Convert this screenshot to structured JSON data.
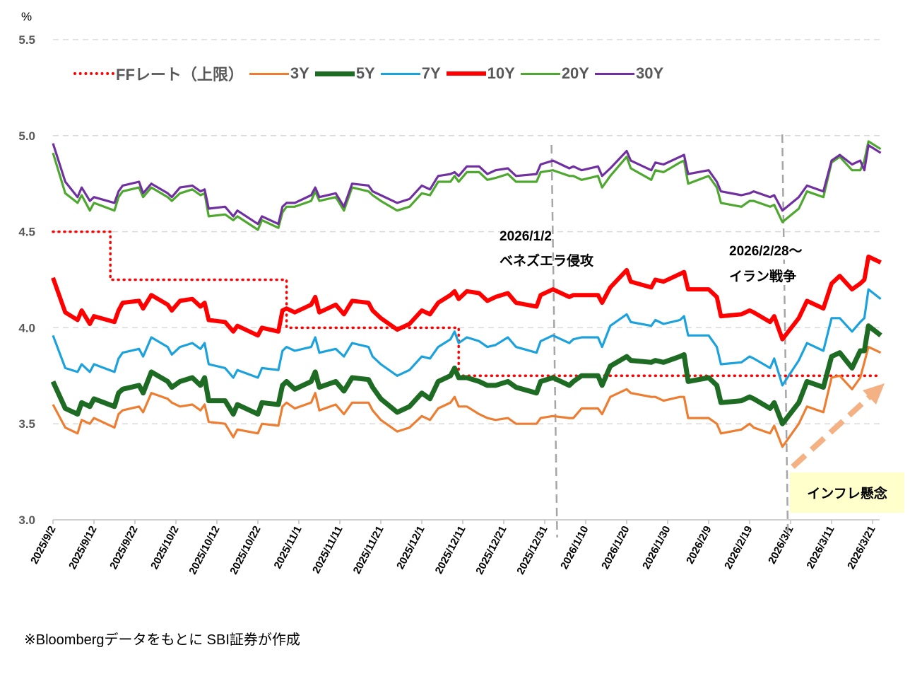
{
  "chart_data": {
    "type": "line",
    "ylabel": "%",
    "ylim": [
      3.0,
      5.5
    ],
    "yticks": [
      "5.5",
      "5.0",
      "4.5",
      "4.0",
      "3.5",
      "3.0"
    ],
    "ytick_values": [
      5.5,
      5.0,
      4.5,
      4.0,
      3.5,
      3.0
    ],
    "grid": true,
    "legend_position": "top",
    "xticks": [
      "2025/9/2",
      "2025/9/12",
      "2025/9/22",
      "2025/10/2",
      "2025/10/12",
      "2025/10/22",
      "2025/11/1",
      "2025/11/11",
      "2025/11/21",
      "2025/12/1",
      "2025/12/11",
      "2025/12/21",
      "2025/12/31",
      "2026/1/10",
      "2026/1/20",
      "2026/1/30",
      "2026/2/9",
      "2026/2/19",
      "2026/3/1",
      "2026/3/11",
      "2026/3/21"
    ],
    "x": [
      "2025-09-02",
      "2025-09-05",
      "2025-09-08",
      "2025-09-09",
      "2025-09-11",
      "2025-09-12",
      "2025-09-17",
      "2025-09-18",
      "2025-09-19",
      "2025-09-23",
      "2025-09-24",
      "2025-09-26",
      "2025-09-30",
      "2025-10-01",
      "2025-10-03",
      "2025-10-06",
      "2025-10-08",
      "2025-10-09",
      "2025-10-10",
      "2025-10-14",
      "2025-10-16",
      "2025-10-17",
      "2025-10-22",
      "2025-10-23",
      "2025-10-27",
      "2025-10-28",
      "2025-10-29",
      "2025-10-31",
      "2025-11-04",
      "2025-11-05",
      "2025-11-06",
      "2025-11-10",
      "2025-11-12",
      "2025-11-14",
      "2025-11-18",
      "2025-11-19",
      "2025-11-21",
      "2025-11-25",
      "2025-11-28",
      "2025-12-01",
      "2025-12-03",
      "2025-12-05",
      "2025-12-08",
      "2025-12-09",
      "2025-12-10",
      "2025-12-12",
      "2025-12-15",
      "2025-12-17",
      "2025-12-19",
      "2025-12-22",
      "2025-12-24",
      "2025-12-29",
      "2025-12-30",
      "2026-01-02",
      "2026-01-06",
      "2026-01-07",
      "2026-01-09",
      "2026-01-13",
      "2026-01-14",
      "2026-01-16",
      "2026-01-20",
      "2026-01-21",
      "2026-01-26",
      "2026-01-27",
      "2026-01-29",
      "2026-02-02",
      "2026-02-03",
      "2026-02-04",
      "2026-02-09",
      "2026-02-11",
      "2026-02-12",
      "2026-02-17",
      "2026-02-19",
      "2026-02-20",
      "2026-02-24",
      "2026-02-25",
      "2026-02-27",
      "2026-03-03",
      "2026-03-05",
      "2026-03-09",
      "2026-03-11",
      "2026-03-13",
      "2026-03-16",
      "2026-03-18",
      "2026-03-19",
      "2026-03-20",
      "2026-03-23"
    ],
    "series": [
      {
        "name": "3Y",
        "color": "#ED7D31",
        "values": [
          3.6,
          3.48,
          3.45,
          3.52,
          3.5,
          3.53,
          3.48,
          3.55,
          3.57,
          3.59,
          3.56,
          3.66,
          3.63,
          3.61,
          3.59,
          3.6,
          3.57,
          3.6,
          3.51,
          3.5,
          3.43,
          3.47,
          3.45,
          3.5,
          3.49,
          3.59,
          3.61,
          3.58,
          3.61,
          3.66,
          3.57,
          3.6,
          3.55,
          3.61,
          3.61,
          3.57,
          3.52,
          3.46,
          3.48,
          3.54,
          3.52,
          3.58,
          3.61,
          3.64,
          3.59,
          3.59,
          3.55,
          3.53,
          3.52,
          3.53,
          3.5,
          3.5,
          3.53,
          3.54,
          3.53,
          3.53,
          3.58,
          3.58,
          3.55,
          3.64,
          3.68,
          3.66,
          3.64,
          3.64,
          3.62,
          3.64,
          3.64,
          3.53,
          3.53,
          3.5,
          3.45,
          3.47,
          3.5,
          3.48,
          3.45,
          3.49,
          3.38,
          3.5,
          3.59,
          3.56,
          3.74,
          3.75,
          3.68,
          3.74,
          3.82,
          3.9,
          3.87
        ]
      },
      {
        "name": "5Y",
        "color": "#1E6B24",
        "values": [
          3.72,
          3.58,
          3.55,
          3.61,
          3.59,
          3.63,
          3.59,
          3.66,
          3.68,
          3.7,
          3.66,
          3.77,
          3.72,
          3.69,
          3.72,
          3.74,
          3.7,
          3.74,
          3.62,
          3.62,
          3.55,
          3.6,
          3.55,
          3.61,
          3.6,
          3.7,
          3.72,
          3.68,
          3.72,
          3.77,
          3.69,
          3.72,
          3.67,
          3.74,
          3.73,
          3.69,
          3.63,
          3.56,
          3.59,
          3.66,
          3.63,
          3.72,
          3.75,
          3.79,
          3.74,
          3.74,
          3.72,
          3.7,
          3.7,
          3.72,
          3.69,
          3.66,
          3.72,
          3.74,
          3.7,
          3.72,
          3.75,
          3.75,
          3.7,
          3.8,
          3.85,
          3.83,
          3.82,
          3.83,
          3.82,
          3.85,
          3.86,
          3.72,
          3.74,
          3.7,
          3.61,
          3.62,
          3.64,
          3.63,
          3.58,
          3.61,
          3.5,
          3.61,
          3.72,
          3.69,
          3.85,
          3.87,
          3.79,
          3.88,
          3.88,
          4.01,
          3.96
        ]
      },
      {
        "name": "7Y",
        "color": "#1BA1DC",
        "values": [
          3.96,
          3.79,
          3.77,
          3.81,
          3.77,
          3.81,
          3.77,
          3.84,
          3.87,
          3.89,
          3.85,
          3.95,
          3.9,
          3.86,
          3.9,
          3.92,
          3.89,
          3.92,
          3.81,
          3.79,
          3.74,
          3.78,
          3.74,
          3.79,
          3.78,
          3.88,
          3.9,
          3.88,
          3.9,
          3.95,
          3.87,
          3.89,
          3.85,
          3.92,
          3.9,
          3.85,
          3.81,
          3.75,
          3.78,
          3.85,
          3.84,
          3.9,
          3.94,
          3.98,
          3.92,
          3.95,
          3.93,
          3.9,
          3.91,
          3.95,
          3.9,
          3.87,
          3.93,
          3.96,
          3.92,
          3.94,
          3.95,
          3.95,
          3.9,
          4.01,
          4.07,
          4.03,
          4.01,
          4.04,
          4.02,
          4.04,
          4.06,
          3.96,
          3.96,
          3.9,
          3.81,
          3.82,
          3.85,
          3.84,
          3.79,
          3.84,
          3.7,
          3.83,
          3.92,
          3.88,
          4.05,
          4.05,
          3.98,
          4.03,
          4.05,
          4.2,
          4.15
        ]
      },
      {
        "name": "10Y",
        "color": "#FF0000",
        "values": [
          4.26,
          4.08,
          4.04,
          4.09,
          4.02,
          4.06,
          4.03,
          4.09,
          4.13,
          4.14,
          4.1,
          4.17,
          4.12,
          4.09,
          4.14,
          4.15,
          4.11,
          4.13,
          4.04,
          4.03,
          3.98,
          4.01,
          3.96,
          4.0,
          3.98,
          4.09,
          4.1,
          4.08,
          4.12,
          4.16,
          4.08,
          4.12,
          4.07,
          4.14,
          4.13,
          4.09,
          4.05,
          3.99,
          4.02,
          4.09,
          4.07,
          4.13,
          4.17,
          4.19,
          4.15,
          4.19,
          4.18,
          4.14,
          4.16,
          4.18,
          4.13,
          4.11,
          4.17,
          4.2,
          4.16,
          4.17,
          4.17,
          4.17,
          4.13,
          4.21,
          4.3,
          4.24,
          4.21,
          4.25,
          4.24,
          4.28,
          4.29,
          4.2,
          4.2,
          4.16,
          4.06,
          4.07,
          4.09,
          4.08,
          4.03,
          4.06,
          3.94,
          4.05,
          4.14,
          4.1,
          4.23,
          4.27,
          4.2,
          4.23,
          4.25,
          4.37,
          4.34
        ]
      },
      {
        "name": "20Y",
        "color": "#4EA72E",
        "values": [
          4.91,
          4.7,
          4.65,
          4.69,
          4.61,
          4.65,
          4.61,
          4.68,
          4.71,
          4.73,
          4.68,
          4.73,
          4.68,
          4.66,
          4.7,
          4.72,
          4.69,
          4.7,
          4.58,
          4.59,
          4.56,
          4.58,
          4.51,
          4.56,
          4.52,
          4.6,
          4.63,
          4.63,
          4.66,
          4.71,
          4.66,
          4.68,
          4.61,
          4.73,
          4.71,
          4.69,
          4.66,
          4.61,
          4.63,
          4.7,
          4.69,
          4.76,
          4.76,
          4.79,
          4.76,
          4.81,
          4.81,
          4.77,
          4.78,
          4.8,
          4.76,
          4.76,
          4.81,
          4.82,
          4.79,
          4.79,
          4.77,
          4.79,
          4.73,
          4.79,
          4.89,
          4.83,
          4.77,
          4.82,
          4.81,
          4.86,
          4.87,
          4.75,
          4.79,
          4.73,
          4.65,
          4.63,
          4.66,
          4.66,
          4.63,
          4.64,
          4.55,
          4.62,
          4.71,
          4.68,
          4.86,
          4.89,
          4.82,
          4.82,
          4.87,
          4.97,
          4.93
        ]
      },
      {
        "name": "30Y",
        "color": "#7030A0",
        "values": [
          4.96,
          4.76,
          4.68,
          4.73,
          4.66,
          4.68,
          4.65,
          4.71,
          4.74,
          4.76,
          4.7,
          4.75,
          4.7,
          4.68,
          4.73,
          4.74,
          4.71,
          4.72,
          4.62,
          4.63,
          4.58,
          4.61,
          4.54,
          4.58,
          4.54,
          4.63,
          4.65,
          4.65,
          4.69,
          4.73,
          4.68,
          4.7,
          4.63,
          4.75,
          4.74,
          4.71,
          4.69,
          4.65,
          4.67,
          4.74,
          4.72,
          4.79,
          4.8,
          4.81,
          4.79,
          4.84,
          4.84,
          4.8,
          4.82,
          4.83,
          4.79,
          4.8,
          4.85,
          4.87,
          4.83,
          4.84,
          4.82,
          4.84,
          4.79,
          4.83,
          4.92,
          4.87,
          4.82,
          4.86,
          4.85,
          4.89,
          4.9,
          4.8,
          4.82,
          4.76,
          4.71,
          4.69,
          4.7,
          4.71,
          4.68,
          4.69,
          4.61,
          4.68,
          4.74,
          4.71,
          4.87,
          4.9,
          4.85,
          4.87,
          4.82,
          4.95,
          4.91
        ]
      }
    ],
    "ff_rate": {
      "name": "FFレート（上限）",
      "color": "#FF0000",
      "steps": [
        {
          "from": "2025-09-02",
          "value": 4.5
        },
        {
          "from": "2025-09-16",
          "value": 4.25
        },
        {
          "from": "2025-10-29",
          "value": 4.0
        },
        {
          "from": "2025-12-10",
          "value": 3.75
        },
        {
          "from": "2026-03-23",
          "value": 3.75
        }
      ]
    },
    "events": [
      {
        "date": "2026-01-02",
        "label_date": "2026/1/2",
        "label_text": "ベネズエラ侵攻"
      },
      {
        "date": "2026-02-28",
        "label_date": "2026/2/28～",
        "label_text": "イラン戦争"
      }
    ],
    "arrow_annotation": {
      "label": "インフレ懸念",
      "color": "#F4B183"
    }
  },
  "legend": {
    "items": [
      {
        "label": "FFレート（上限）",
        "color": "#FF0000",
        "style": "dotted"
      },
      {
        "label": "3Y",
        "color": "#ED7D31"
      },
      {
        "label": "5Y",
        "color": "#1E6B24"
      },
      {
        "label": "7Y",
        "color": "#1BA1DC"
      },
      {
        "label": "10Y",
        "color": "#FF0000"
      },
      {
        "label": "20Y",
        "color": "#4EA72E"
      },
      {
        "label": "30Y",
        "color": "#7030A0"
      }
    ]
  },
  "unit_label": "%",
  "source_note": "※Bloombergデータをもとに SBI証券が作成"
}
